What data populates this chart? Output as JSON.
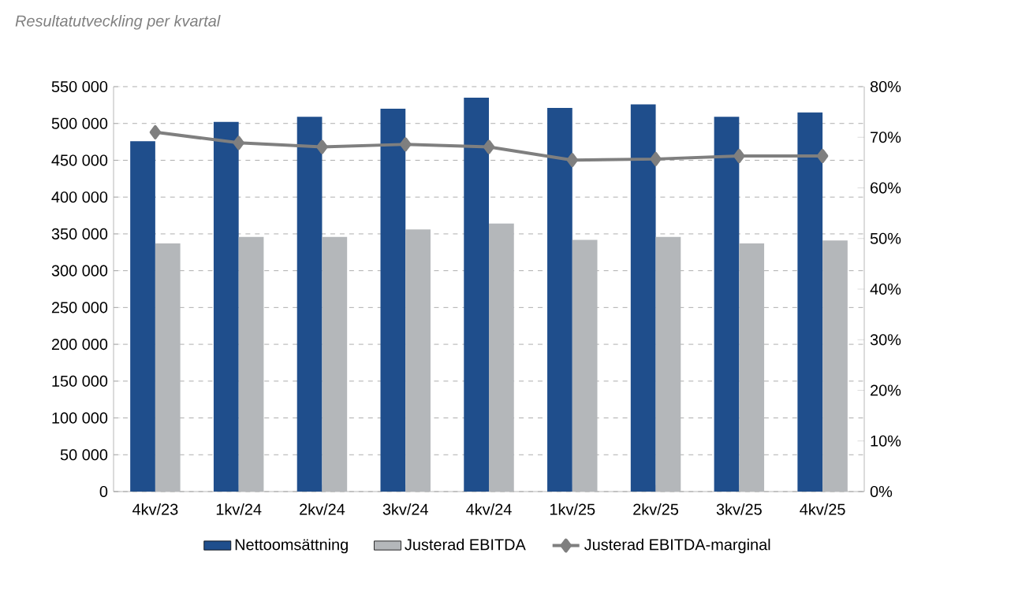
{
  "chart_data": {
    "type": "bar",
    "title": "Resultatutveckling per kvartal",
    "categories": [
      "4kv/23",
      "1kv/24",
      "2kv/24",
      "3kv/24",
      "4kv/24",
      "1kv/25",
      "2kv/25",
      "3kv/25",
      "4kv/25"
    ],
    "series": [
      {
        "name": "Nettoomsättning",
        "color": "#1f4e8c",
        "values": [
          476000,
          502000,
          509000,
          520000,
          535000,
          521000,
          526000,
          509000,
          515000
        ]
      },
      {
        "name": "Justerad EBITDA",
        "color": "#b4b7ba",
        "values": [
          337000,
          346000,
          346000,
          356000,
          364000,
          342000,
          346000,
          337000,
          341000
        ]
      },
      {
        "name": "Justerad EBITDA-marginal",
        "color": "#7f7f7f",
        "type": "line",
        "axis": "y2",
        "marker": "diamond",
        "values": [
          71.0,
          68.9,
          68.1,
          68.6,
          68.1,
          65.5,
          65.7,
          66.3,
          66.3
        ]
      }
    ],
    "ylim": [
      0,
      550000
    ],
    "yticks": [
      0,
      {
        "value": 50000,
        "label": "50 000"
      },
      {
        "value": 100000,
        "label": "100 000"
      },
      {
        "value": 150000,
        "label": "150 000"
      },
      {
        "value": 200000,
        "label": "200 000"
      },
      {
        "value": 250000,
        "label": "250 000"
      },
      {
        "value": 300000,
        "label": "300 000"
      },
      {
        "value": 350000,
        "label": "350 000"
      },
      {
        "value": 400000,
        "label": "400 000"
      },
      {
        "value": 450000,
        "label": "450 000"
      },
      {
        "value": 500000,
        "label": "500 000"
      },
      {
        "value": 550000,
        "label": "550 000"
      }
    ],
    "y2lim": [
      0,
      80
    ],
    "y2ticks": [
      {
        "value": 0,
        "label": "0%"
      },
      {
        "value": 10,
        "label": "10%"
      },
      {
        "value": 20,
        "label": "20%"
      },
      {
        "value": 30,
        "label": "30%"
      },
      {
        "value": 40,
        "label": "40%"
      },
      {
        "value": 50,
        "label": "50%"
      },
      {
        "value": 60,
        "label": "60%"
      },
      {
        "value": 70,
        "label": "70%"
      },
      {
        "value": 80,
        "label": "80%"
      }
    ],
    "grid": "y",
    "legend": "bottom"
  }
}
